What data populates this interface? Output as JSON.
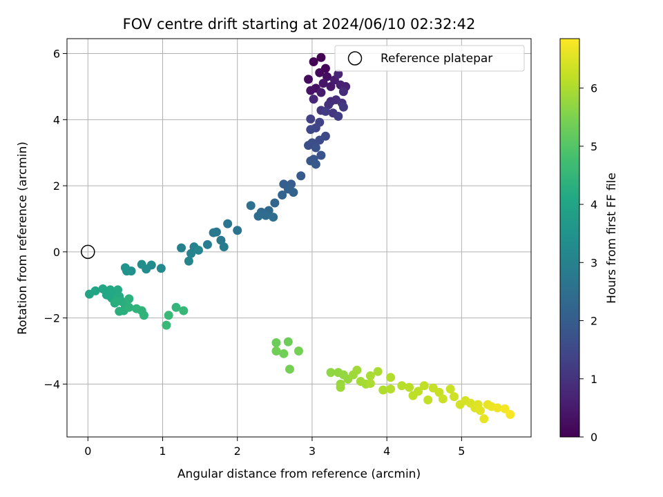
{
  "chart_data": {
    "type": "scatter",
    "title": "FOV centre drift starting at 2024/06/10 02:32:42",
    "xlabel": "Angular distance from reference (arcmin)",
    "ylabel": "Rotation from reference (arcmin)",
    "xlim": [
      -0.28,
      5.93
    ],
    "ylim": [
      -5.6,
      6.45
    ],
    "xticks": [
      0,
      1,
      2,
      3,
      4,
      5
    ],
    "yticks": [
      -4,
      -2,
      0,
      2,
      4,
      6
    ],
    "grid": true,
    "colormap": "viridis",
    "colorbar": {
      "label": "Hours from first FF file",
      "range": [
        0,
        6.85
      ],
      "ticks": [
        0,
        1,
        2,
        3,
        4,
        5,
        6
      ]
    },
    "legend": {
      "location": "upper right",
      "entries": [
        "Reference platepar"
      ]
    },
    "reference_point": {
      "x": 0,
      "y": 0
    },
    "points": [
      {
        "x": 3.12,
        "y": 5.88,
        "t": 0.0
      },
      {
        "x": 3.02,
        "y": 5.75,
        "t": 0.05
      },
      {
        "x": 3.18,
        "y": 5.55,
        "t": 0.1
      },
      {
        "x": 3.1,
        "y": 5.42,
        "t": 0.15
      },
      {
        "x": 2.95,
        "y": 5.22,
        "t": 0.2
      },
      {
        "x": 3.2,
        "y": 5.3,
        "t": 0.25
      },
      {
        "x": 3.05,
        "y": 4.95,
        "t": 0.3
      },
      {
        "x": 2.98,
        "y": 4.88,
        "t": 0.35
      },
      {
        "x": 3.15,
        "y": 5.1,
        "t": 0.4
      },
      {
        "x": 3.25,
        "y": 5.0,
        "t": 0.45
      },
      {
        "x": 3.12,
        "y": 4.82,
        "t": 0.5
      },
      {
        "x": 3.3,
        "y": 5.2,
        "t": 0.55
      },
      {
        "x": 3.38,
        "y": 5.05,
        "t": 0.6
      },
      {
        "x": 3.45,
        "y": 5.0,
        "t": 0.65
      },
      {
        "x": 3.35,
        "y": 5.38,
        "t": 0.7
      },
      {
        "x": 3.25,
        "y": 4.55,
        "t": 0.75
      },
      {
        "x": 3.02,
        "y": 4.62,
        "t": 0.8
      },
      {
        "x": 3.42,
        "y": 4.85,
        "t": 0.85
      },
      {
        "x": 3.32,
        "y": 4.6,
        "t": 0.9
      },
      {
        "x": 3.22,
        "y": 4.45,
        "t": 0.95
      },
      {
        "x": 3.4,
        "y": 4.5,
        "t": 1.0
      },
      {
        "x": 3.12,
        "y": 4.28,
        "t": 1.05
      },
      {
        "x": 3.28,
        "y": 4.2,
        "t": 1.1
      },
      {
        "x": 3.42,
        "y": 4.38,
        "t": 1.15
      },
      {
        "x": 3.18,
        "y": 4.25,
        "t": 1.2
      },
      {
        "x": 3.35,
        "y": 4.1,
        "t": 1.25
      },
      {
        "x": 2.98,
        "y": 4.02,
        "t": 1.3
      },
      {
        "x": 3.1,
        "y": 3.92,
        "t": 1.35
      },
      {
        "x": 3.05,
        "y": 3.75,
        "t": 1.4
      },
      {
        "x": 2.98,
        "y": 3.7,
        "t": 1.45
      },
      {
        "x": 3.18,
        "y": 3.5,
        "t": 1.5
      },
      {
        "x": 3.1,
        "y": 3.38,
        "t": 1.55
      },
      {
        "x": 3.0,
        "y": 3.3,
        "t": 1.6
      },
      {
        "x": 2.95,
        "y": 3.22,
        "t": 1.65
      },
      {
        "x": 3.05,
        "y": 3.15,
        "t": 1.7
      },
      {
        "x": 3.12,
        "y": 2.92,
        "t": 1.75
      },
      {
        "x": 3.02,
        "y": 2.8,
        "t": 1.8
      },
      {
        "x": 2.98,
        "y": 2.75,
        "t": 1.85
      },
      {
        "x": 3.05,
        "y": 2.65,
        "t": 1.9
      },
      {
        "x": 2.85,
        "y": 2.3,
        "t": 1.95
      },
      {
        "x": 2.72,
        "y": 2.05,
        "t": 2.0
      },
      {
        "x": 2.62,
        "y": 2.05,
        "t": 2.05
      },
      {
        "x": 2.68,
        "y": 1.9,
        "t": 2.1
      },
      {
        "x": 2.75,
        "y": 1.8,
        "t": 2.15
      },
      {
        "x": 2.6,
        "y": 1.72,
        "t": 2.2
      },
      {
        "x": 2.5,
        "y": 1.48,
        "t": 2.25
      },
      {
        "x": 2.42,
        "y": 1.25,
        "t": 2.3
      },
      {
        "x": 2.32,
        "y": 1.2,
        "t": 2.35
      },
      {
        "x": 2.38,
        "y": 1.1,
        "t": 2.4
      },
      {
        "x": 2.28,
        "y": 1.08,
        "t": 2.45
      },
      {
        "x": 2.48,
        "y": 1.05,
        "t": 2.5
      },
      {
        "x": 2.18,
        "y": 1.4,
        "t": 2.55
      },
      {
        "x": 2.0,
        "y": 0.65,
        "t": 2.6
      },
      {
        "x": 1.87,
        "y": 0.85,
        "t": 2.65
      },
      {
        "x": 1.72,
        "y": 0.6,
        "t": 2.7
      },
      {
        "x": 1.78,
        "y": 0.35,
        "t": 2.75
      },
      {
        "x": 1.68,
        "y": 0.58,
        "t": 2.8
      },
      {
        "x": 1.82,
        "y": 0.15,
        "t": 2.85
      },
      {
        "x": 1.6,
        "y": 0.22,
        "t": 2.9
      },
      {
        "x": 1.42,
        "y": 0.15,
        "t": 2.95
      },
      {
        "x": 1.25,
        "y": 0.12,
        "t": 3.0
      },
      {
        "x": 1.38,
        "y": -0.05,
        "t": 3.05
      },
      {
        "x": 1.35,
        "y": -0.28,
        "t": 3.1
      },
      {
        "x": 1.48,
        "y": 0.05,
        "t": 3.15
      },
      {
        "x": 0.98,
        "y": -0.5,
        "t": 3.2
      },
      {
        "x": 0.85,
        "y": -0.4,
        "t": 3.25
      },
      {
        "x": 0.78,
        "y": -0.52,
        "t": 3.3
      },
      {
        "x": 0.72,
        "y": -0.38,
        "t": 3.35
      },
      {
        "x": 0.58,
        "y": -0.58,
        "t": 3.4
      },
      {
        "x": 0.52,
        "y": -0.58,
        "t": 3.45
      },
      {
        "x": 0.5,
        "y": -0.48,
        "t": 3.5
      },
      {
        "x": 0.02,
        "y": -1.28,
        "t": 4.0
      },
      {
        "x": 0.1,
        "y": -1.18,
        "t": 4.02
      },
      {
        "x": 0.2,
        "y": -1.12,
        "t": 4.05
      },
      {
        "x": 0.25,
        "y": -1.3,
        "t": 4.07
      },
      {
        "x": 0.3,
        "y": -1.15,
        "t": 4.1
      },
      {
        "x": 0.35,
        "y": -1.25,
        "t": 4.12
      },
      {
        "x": 0.4,
        "y": -1.15,
        "t": 4.15
      },
      {
        "x": 0.32,
        "y": -1.4,
        "t": 4.17
      },
      {
        "x": 0.42,
        "y": -1.35,
        "t": 4.2
      },
      {
        "x": 0.36,
        "y": -1.55,
        "t": 4.22
      },
      {
        "x": 0.45,
        "y": -1.5,
        "t": 4.25
      },
      {
        "x": 0.5,
        "y": -1.65,
        "t": 4.27
      },
      {
        "x": 0.42,
        "y": -1.8,
        "t": 4.3
      },
      {
        "x": 0.48,
        "y": -1.78,
        "t": 4.32
      },
      {
        "x": 0.55,
        "y": -1.42,
        "t": 4.35
      },
      {
        "x": 0.55,
        "y": -1.68,
        "t": 4.38
      },
      {
        "x": 0.65,
        "y": -1.72,
        "t": 4.4
      },
      {
        "x": 0.72,
        "y": -1.78,
        "t": 4.42
      },
      {
        "x": 0.75,
        "y": -1.92,
        "t": 4.45
      },
      {
        "x": 1.18,
        "y": -1.68,
        "t": 4.5
      },
      {
        "x": 1.28,
        "y": -1.78,
        "t": 4.55
      },
      {
        "x": 1.08,
        "y": -1.92,
        "t": 4.58
      },
      {
        "x": 1.05,
        "y": -2.22,
        "t": 4.6
      },
      {
        "x": 0.38,
        "y": -1.5,
        "t": 4.3
      },
      {
        "x": 0.28,
        "y": -1.32,
        "t": 4.12
      },
      {
        "x": 2.52,
        "y": -2.75,
        "t": 5.3
      },
      {
        "x": 2.68,
        "y": -2.72,
        "t": 5.32
      },
      {
        "x": 2.52,
        "y": -3.0,
        "t": 5.35
      },
      {
        "x": 2.62,
        "y": -3.08,
        "t": 5.37
      },
      {
        "x": 2.82,
        "y": -3.0,
        "t": 5.4
      },
      {
        "x": 2.7,
        "y": -3.55,
        "t": 5.42
      },
      {
        "x": 3.25,
        "y": -3.65,
        "t": 5.7
      },
      {
        "x": 3.35,
        "y": -3.65,
        "t": 5.72
      },
      {
        "x": 3.42,
        "y": -3.72,
        "t": 5.75
      },
      {
        "x": 3.48,
        "y": -3.85,
        "t": 5.77
      },
      {
        "x": 3.38,
        "y": -4.0,
        "t": 5.8
      },
      {
        "x": 3.38,
        "y": -4.1,
        "t": 5.82
      },
      {
        "x": 3.55,
        "y": -3.72,
        "t": 5.85
      },
      {
        "x": 3.6,
        "y": -3.58,
        "t": 5.87
      },
      {
        "x": 3.65,
        "y": -3.92,
        "t": 5.9
      },
      {
        "x": 3.72,
        "y": -4.0,
        "t": 5.92
      },
      {
        "x": 3.78,
        "y": -3.75,
        "t": 5.95
      },
      {
        "x": 3.88,
        "y": -3.62,
        "t": 5.97
      },
      {
        "x": 3.78,
        "y": -3.98,
        "t": 6.0
      },
      {
        "x": 3.95,
        "y": -4.18,
        "t": 6.02
      },
      {
        "x": 4.05,
        "y": -3.8,
        "t": 6.05
      },
      {
        "x": 4.05,
        "y": -4.15,
        "t": 6.07
      },
      {
        "x": 4.2,
        "y": -4.05,
        "t": 6.1
      },
      {
        "x": 4.3,
        "y": -4.1,
        "t": 6.12
      },
      {
        "x": 4.35,
        "y": -4.35,
        "t": 6.15
      },
      {
        "x": 4.42,
        "y": -4.22,
        "t": 6.17
      },
      {
        "x": 4.5,
        "y": -4.05,
        "t": 6.2
      },
      {
        "x": 4.55,
        "y": -4.48,
        "t": 6.22
      },
      {
        "x": 4.62,
        "y": -4.12,
        "t": 6.25
      },
      {
        "x": 4.7,
        "y": -4.25,
        "t": 6.27
      },
      {
        "x": 4.75,
        "y": -4.45,
        "t": 6.3
      },
      {
        "x": 4.85,
        "y": -4.15,
        "t": 6.32
      },
      {
        "x": 4.9,
        "y": -4.38,
        "t": 6.35
      },
      {
        "x": 4.98,
        "y": -4.62,
        "t": 6.4
      },
      {
        "x": 5.05,
        "y": -4.5,
        "t": 6.42
      },
      {
        "x": 5.12,
        "y": -4.58,
        "t": 6.45
      },
      {
        "x": 5.18,
        "y": -4.72,
        "t": 6.5
      },
      {
        "x": 5.22,
        "y": -4.62,
        "t": 6.52
      },
      {
        "x": 5.25,
        "y": -4.8,
        "t": 6.55
      },
      {
        "x": 5.3,
        "y": -5.05,
        "t": 6.6
      },
      {
        "x": 5.35,
        "y": -4.62,
        "t": 6.62
      },
      {
        "x": 5.4,
        "y": -4.68,
        "t": 6.65
      },
      {
        "x": 5.48,
        "y": -4.72,
        "t": 6.7
      },
      {
        "x": 5.58,
        "y": -4.75,
        "t": 6.75
      },
      {
        "x": 5.65,
        "y": -4.92,
        "t": 6.8
      }
    ]
  }
}
